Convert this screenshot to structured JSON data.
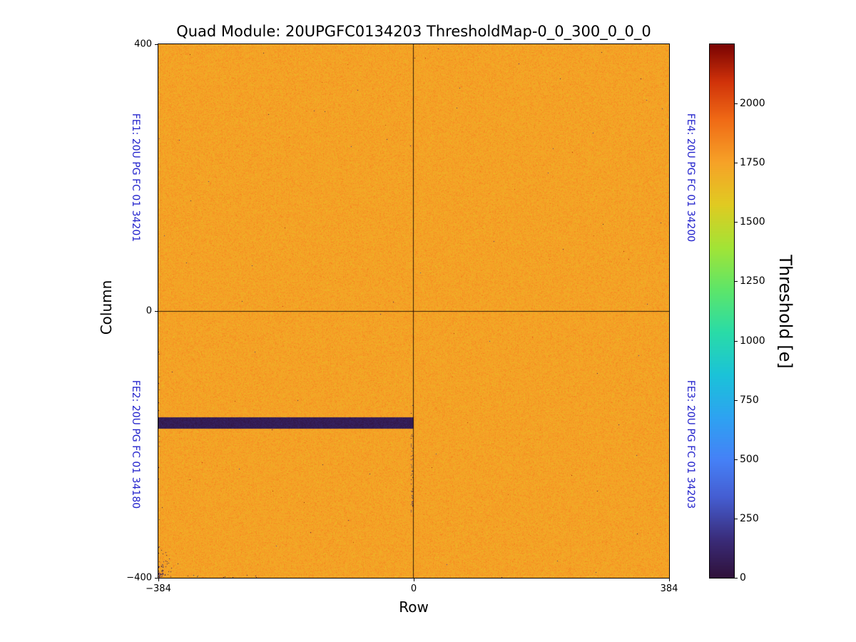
{
  "chart_data": {
    "type": "heatmap",
    "title": "Quad Module: 20UPGFC0134203 ThresholdMap-0_0_300_0_0_0",
    "xlabel": "Row",
    "ylabel": "Column",
    "x_range": [
      -384,
      384
    ],
    "y_range": [
      -400,
      400
    ],
    "xticks": [
      -384,
      0,
      384
    ],
    "xtick_labels": [
      "−384",
      "0",
      "384"
    ],
    "yticks": [
      400,
      0,
      -400
    ],
    "ytick_labels": [
      "400",
      "0",
      "−400"
    ],
    "grid": false,
    "quadrant_divider_x": 0,
    "quadrant_divider_y": 0,
    "colormap": "turbo",
    "colormap_stops": [
      {
        "t": 0.0,
        "color": "#30123b"
      },
      {
        "t": 0.07,
        "color": "#3a2c79"
      },
      {
        "t": 0.15,
        "color": "#455ed2"
      },
      {
        "t": 0.22,
        "color": "#4681f7"
      },
      {
        "t": 0.3,
        "color": "#2ea3f2"
      },
      {
        "t": 0.38,
        "color": "#1bc3d9"
      },
      {
        "t": 0.46,
        "color": "#2adca8"
      },
      {
        "t": 0.54,
        "color": "#5ee66a"
      },
      {
        "t": 0.62,
        "color": "#a4e436"
      },
      {
        "t": 0.7,
        "color": "#e1cb22"
      },
      {
        "t": 0.78,
        "color": "#f7a228"
      },
      {
        "t": 0.86,
        "color": "#f06a16"
      },
      {
        "t": 0.93,
        "color": "#d1330a"
      },
      {
        "t": 1.0,
        "color": "#7a0403"
      }
    ],
    "colorbar": {
      "label": "Threshold [e]",
      "position": "right",
      "vmin": 0,
      "vmax": 2250,
      "ticks": [
        0,
        250,
        500,
        750,
        1000,
        1250,
        1500,
        1750,
        2000
      ],
      "tick_labels": [
        "0",
        "250",
        "500",
        "750",
        "1000",
        "1250",
        "1500",
        "1750",
        "2000"
      ]
    },
    "field": {
      "mean_threshold": 1750,
      "noise_sigma": 40,
      "dead_pixel_fraction": 0.0001,
      "hot_pixel_fraction": 6e-05
    },
    "features": [
      {
        "name": "dead-band",
        "shape": "rect",
        "row_min": -384,
        "row_max": 0,
        "col_min": -177,
        "col_max": -159,
        "value": 30
      },
      {
        "name": "dead-pixel-cluster",
        "shape": "cluster",
        "location": "bottom-left-corner",
        "value": 50
      },
      {
        "name": "dead-pixel-trail",
        "shape": "trail",
        "row": -3,
        "col_min": -300,
        "col_max": -180,
        "value": 60
      }
    ],
    "fe_labels": [
      {
        "id": "FE1",
        "label": "FE1: 20U PG FC 01 34201",
        "side": "left",
        "quadrant": "top-left"
      },
      {
        "id": "FE2",
        "label": "FE2: 20U PG FC 01 34180",
        "side": "left",
        "quadrant": "bottom-left"
      },
      {
        "id": "FE4",
        "label": "FE4: 20U PG FC 01 34200",
        "side": "right",
        "quadrant": "top-right"
      },
      {
        "id": "FE3",
        "label": "FE3: 20U PG FC 01 34203",
        "side": "right",
        "quadrant": "bottom-right"
      }
    ],
    "fe_label_color": "#2222cc"
  }
}
